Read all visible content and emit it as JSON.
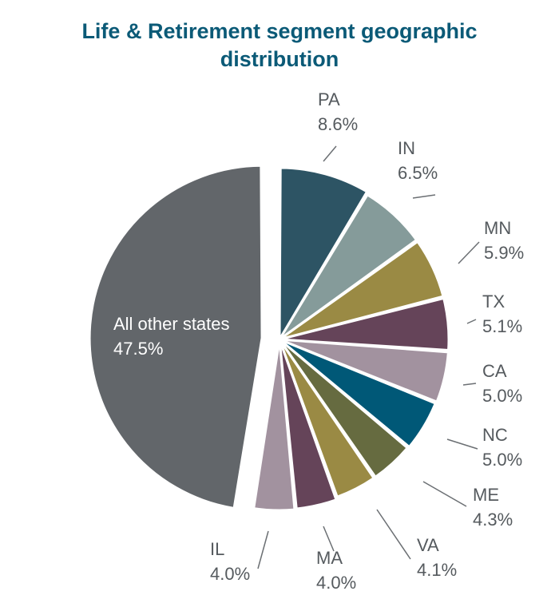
{
  "chart_data": {
    "type": "pie",
    "title_lines": [
      "Life & Retirement segment geographic",
      "distribution"
    ],
    "slices": [
      {
        "name": "PA",
        "value": 8.6,
        "label": "8.6%",
        "color": "#2d5464"
      },
      {
        "name": "IN",
        "value": 6.5,
        "label": "6.5%",
        "color": "#859b9a"
      },
      {
        "name": "MN",
        "value": 5.9,
        "label": "5.9%",
        "color": "#9a8a44"
      },
      {
        "name": "TX",
        "value": 5.1,
        "label": "5.1%",
        "color": "#654459"
      },
      {
        "name": "CA",
        "value": 5.0,
        "label": "5.0%",
        "color": "#a2929f"
      },
      {
        "name": "NC",
        "value": 5.0,
        "label": "5.0%",
        "color": "#005877"
      },
      {
        "name": "ME",
        "value": 4.3,
        "label": "4.3%",
        "color": "#666b40"
      },
      {
        "name": "VA",
        "value": 4.1,
        "label": "4.1%",
        "color": "#9a8a44"
      },
      {
        "name": "MA",
        "value": 4.0,
        "label": "4.0%",
        "color": "#654459"
      },
      {
        "name": "IL",
        "value": 4.0,
        "label": "4.0%",
        "color": "#a2929f"
      },
      {
        "name": "All other states",
        "value": 47.5,
        "label": "47.5%",
        "color": "#62666a"
      }
    ]
  }
}
